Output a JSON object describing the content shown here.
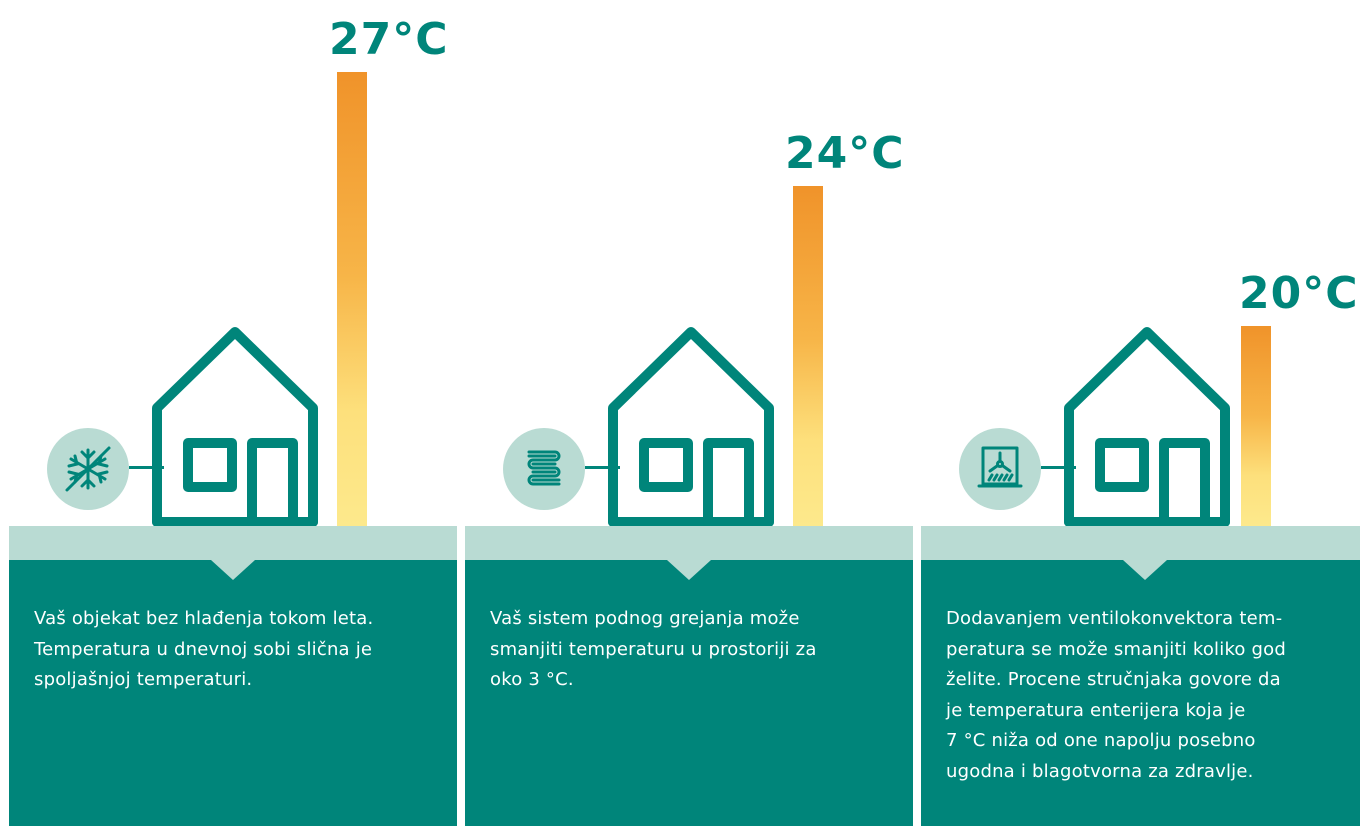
{
  "panels": [
    {
      "temperature": "27°C",
      "level": 27,
      "icon": "snowflake-off-icon",
      "description": "Vaš objekat bez hlađenja tokom leta.\nTemperatura u dnevnoj sobi slična je\nspoljašnjoj temperaturi."
    },
    {
      "temperature": "24°C",
      "level": 24,
      "icon": "floor-heating-icon",
      "description": "Vaš sistem podnog grejanja može\nsmanjiti temperaturu u prostoriji za\noko 3 °C."
    },
    {
      "temperature": "20°C",
      "level": 20,
      "icon": "fan-coil-icon",
      "description": "Dodavanjem ventilokonvektora tem-\nperatura se može smanjiti koliko god\nželite. Procene stručnjaka govore da\nje temperatura enterijera koja je\n7 °C niža od one napolju posebno\nugodna i blagotvorna za zdravlje."
    }
  ],
  "colors": {
    "teal": "#00857a",
    "light_teal": "#b9dbd3",
    "bar_top": "#f0932a",
    "bar_bottom": "#fde98c"
  }
}
